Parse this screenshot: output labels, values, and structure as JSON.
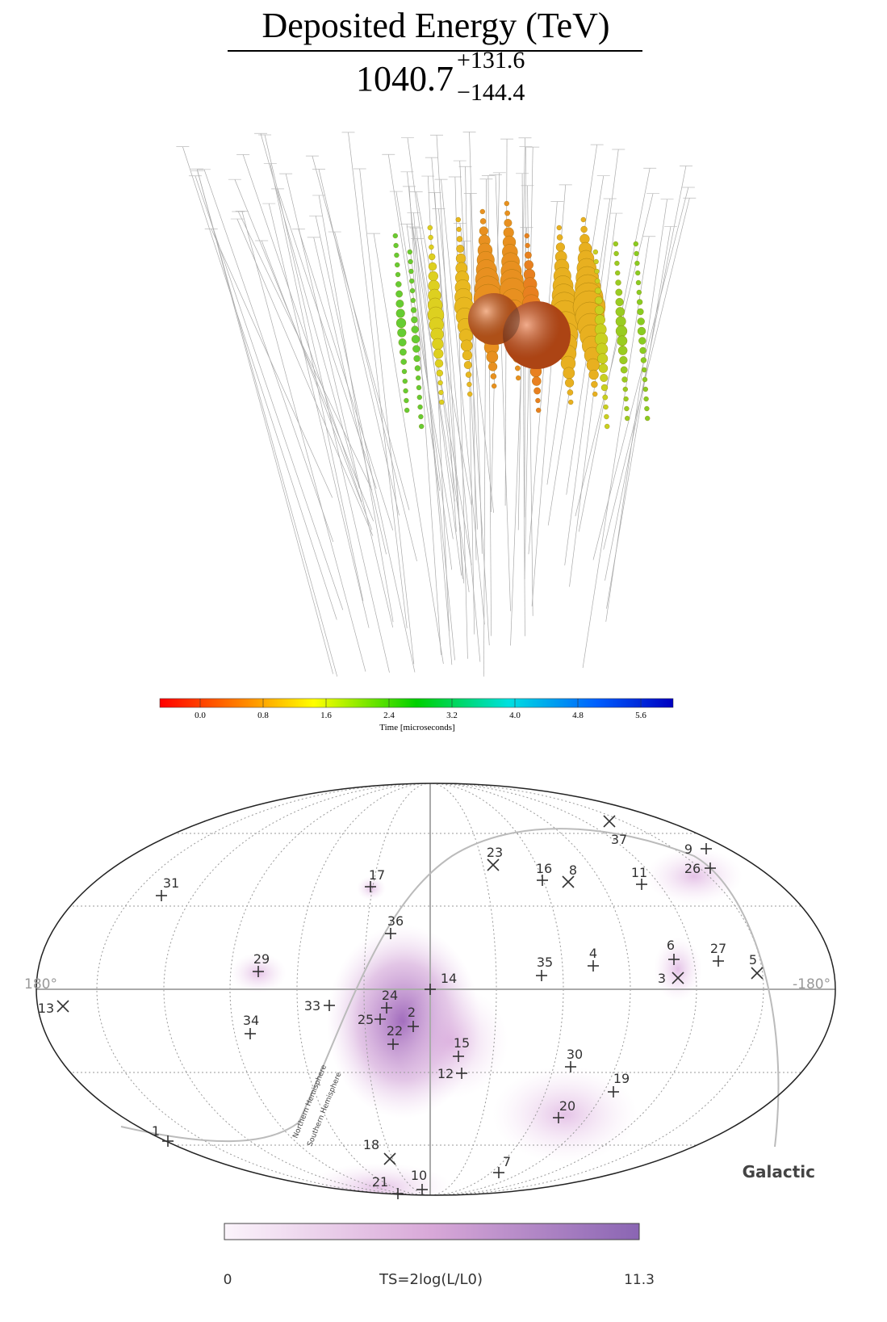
{
  "energy": {
    "title": "Deposited Energy (TeV)",
    "value": "1040.7",
    "upper": "+131.6",
    "lower": "−144.4"
  },
  "time_colorbar": {
    "ticks": [
      "0.0",
      "0.8",
      "1.6",
      "2.4",
      "3.2",
      "4.0",
      "4.8",
      "5.6"
    ],
    "label": "Time [microseconds]"
  },
  "skymap": {
    "left_label": "180°",
    "right_label": "-180°",
    "frame": "Galactic",
    "plane_labels": [
      "Northern Hemisphere",
      "Southern Hemisphere"
    ],
    "events": [
      "1",
      "2",
      "3",
      "4",
      "5",
      "6",
      "7",
      "8",
      "9",
      "10",
      "11",
      "12",
      "13",
      "14",
      "15",
      "16",
      "17",
      "18",
      "19",
      "20",
      "21",
      "22",
      "23",
      "24",
      "25",
      "26",
      "27",
      "29",
      "30",
      "31",
      "33",
      "34",
      "35",
      "36",
      "37"
    ]
  },
  "ts_colorbar": {
    "min": "0",
    "label": "TS=2log(L/L0)",
    "max": "11.3"
  }
}
